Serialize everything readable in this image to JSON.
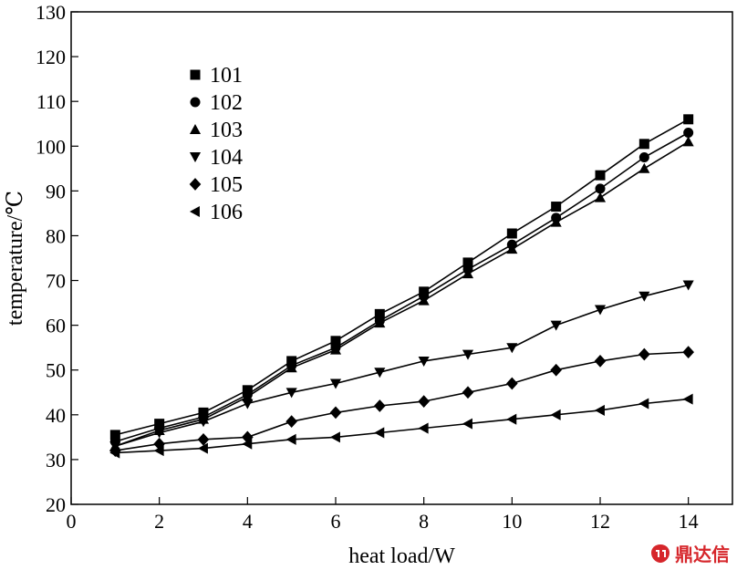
{
  "chart_data": {
    "type": "line",
    "xlabel": "heat load/W",
    "ylabel": "temperature/℃",
    "xlim": [
      0,
      15
    ],
    "ylim": [
      20,
      130
    ],
    "xticks": [
      0,
      2,
      4,
      6,
      8,
      10,
      12,
      14
    ],
    "yticks": [
      20,
      30,
      40,
      50,
      60,
      70,
      80,
      90,
      100,
      110,
      120,
      130
    ],
    "grid": false,
    "legend_position": "top-left",
    "x": [
      1,
      2,
      3,
      4,
      5,
      6,
      7,
      8,
      9,
      10,
      11,
      12,
      13,
      14
    ],
    "series": [
      {
        "name": "101",
        "marker": "square",
        "values": [
          35.5,
          38.0,
          40.5,
          45.5,
          52.0,
          56.5,
          62.5,
          67.5,
          74.0,
          80.5,
          86.5,
          93.5,
          100.5,
          106.0
        ]
      },
      {
        "name": "102",
        "marker": "circle",
        "values": [
          34.0,
          37.0,
          39.5,
          44.5,
          51.0,
          55.0,
          61.0,
          66.5,
          72.5,
          78.0,
          84.0,
          90.5,
          97.5,
          103.0
        ]
      },
      {
        "name": "103",
        "marker": "triangle-up",
        "values": [
          33.0,
          36.5,
          39.0,
          44.0,
          50.5,
          54.5,
          60.5,
          65.5,
          71.5,
          77.0,
          83.0,
          88.5,
          95.0,
          101.0
        ]
      },
      {
        "name": "104",
        "marker": "triangle-down",
        "values": [
          33.0,
          36.0,
          38.5,
          42.5,
          45.0,
          47.0,
          49.5,
          52.0,
          53.5,
          55.0,
          60.0,
          63.5,
          66.5,
          69.0
        ]
      },
      {
        "name": "105",
        "marker": "diamond",
        "values": [
          32.0,
          33.5,
          34.5,
          35.0,
          38.5,
          40.5,
          42.0,
          43.0,
          45.0,
          47.0,
          50.0,
          52.0,
          53.5,
          54.0
        ]
      },
      {
        "name": "106",
        "marker": "triangle-left",
        "values": [
          31.5,
          32.0,
          32.5,
          33.5,
          34.5,
          35.0,
          36.0,
          37.0,
          38.0,
          39.0,
          40.0,
          41.0,
          42.5,
          43.5
        ]
      }
    ]
  },
  "watermark": {
    "text": "鼎达信",
    "color": "#d6262b",
    "icon": "drip-logo-icon"
  }
}
